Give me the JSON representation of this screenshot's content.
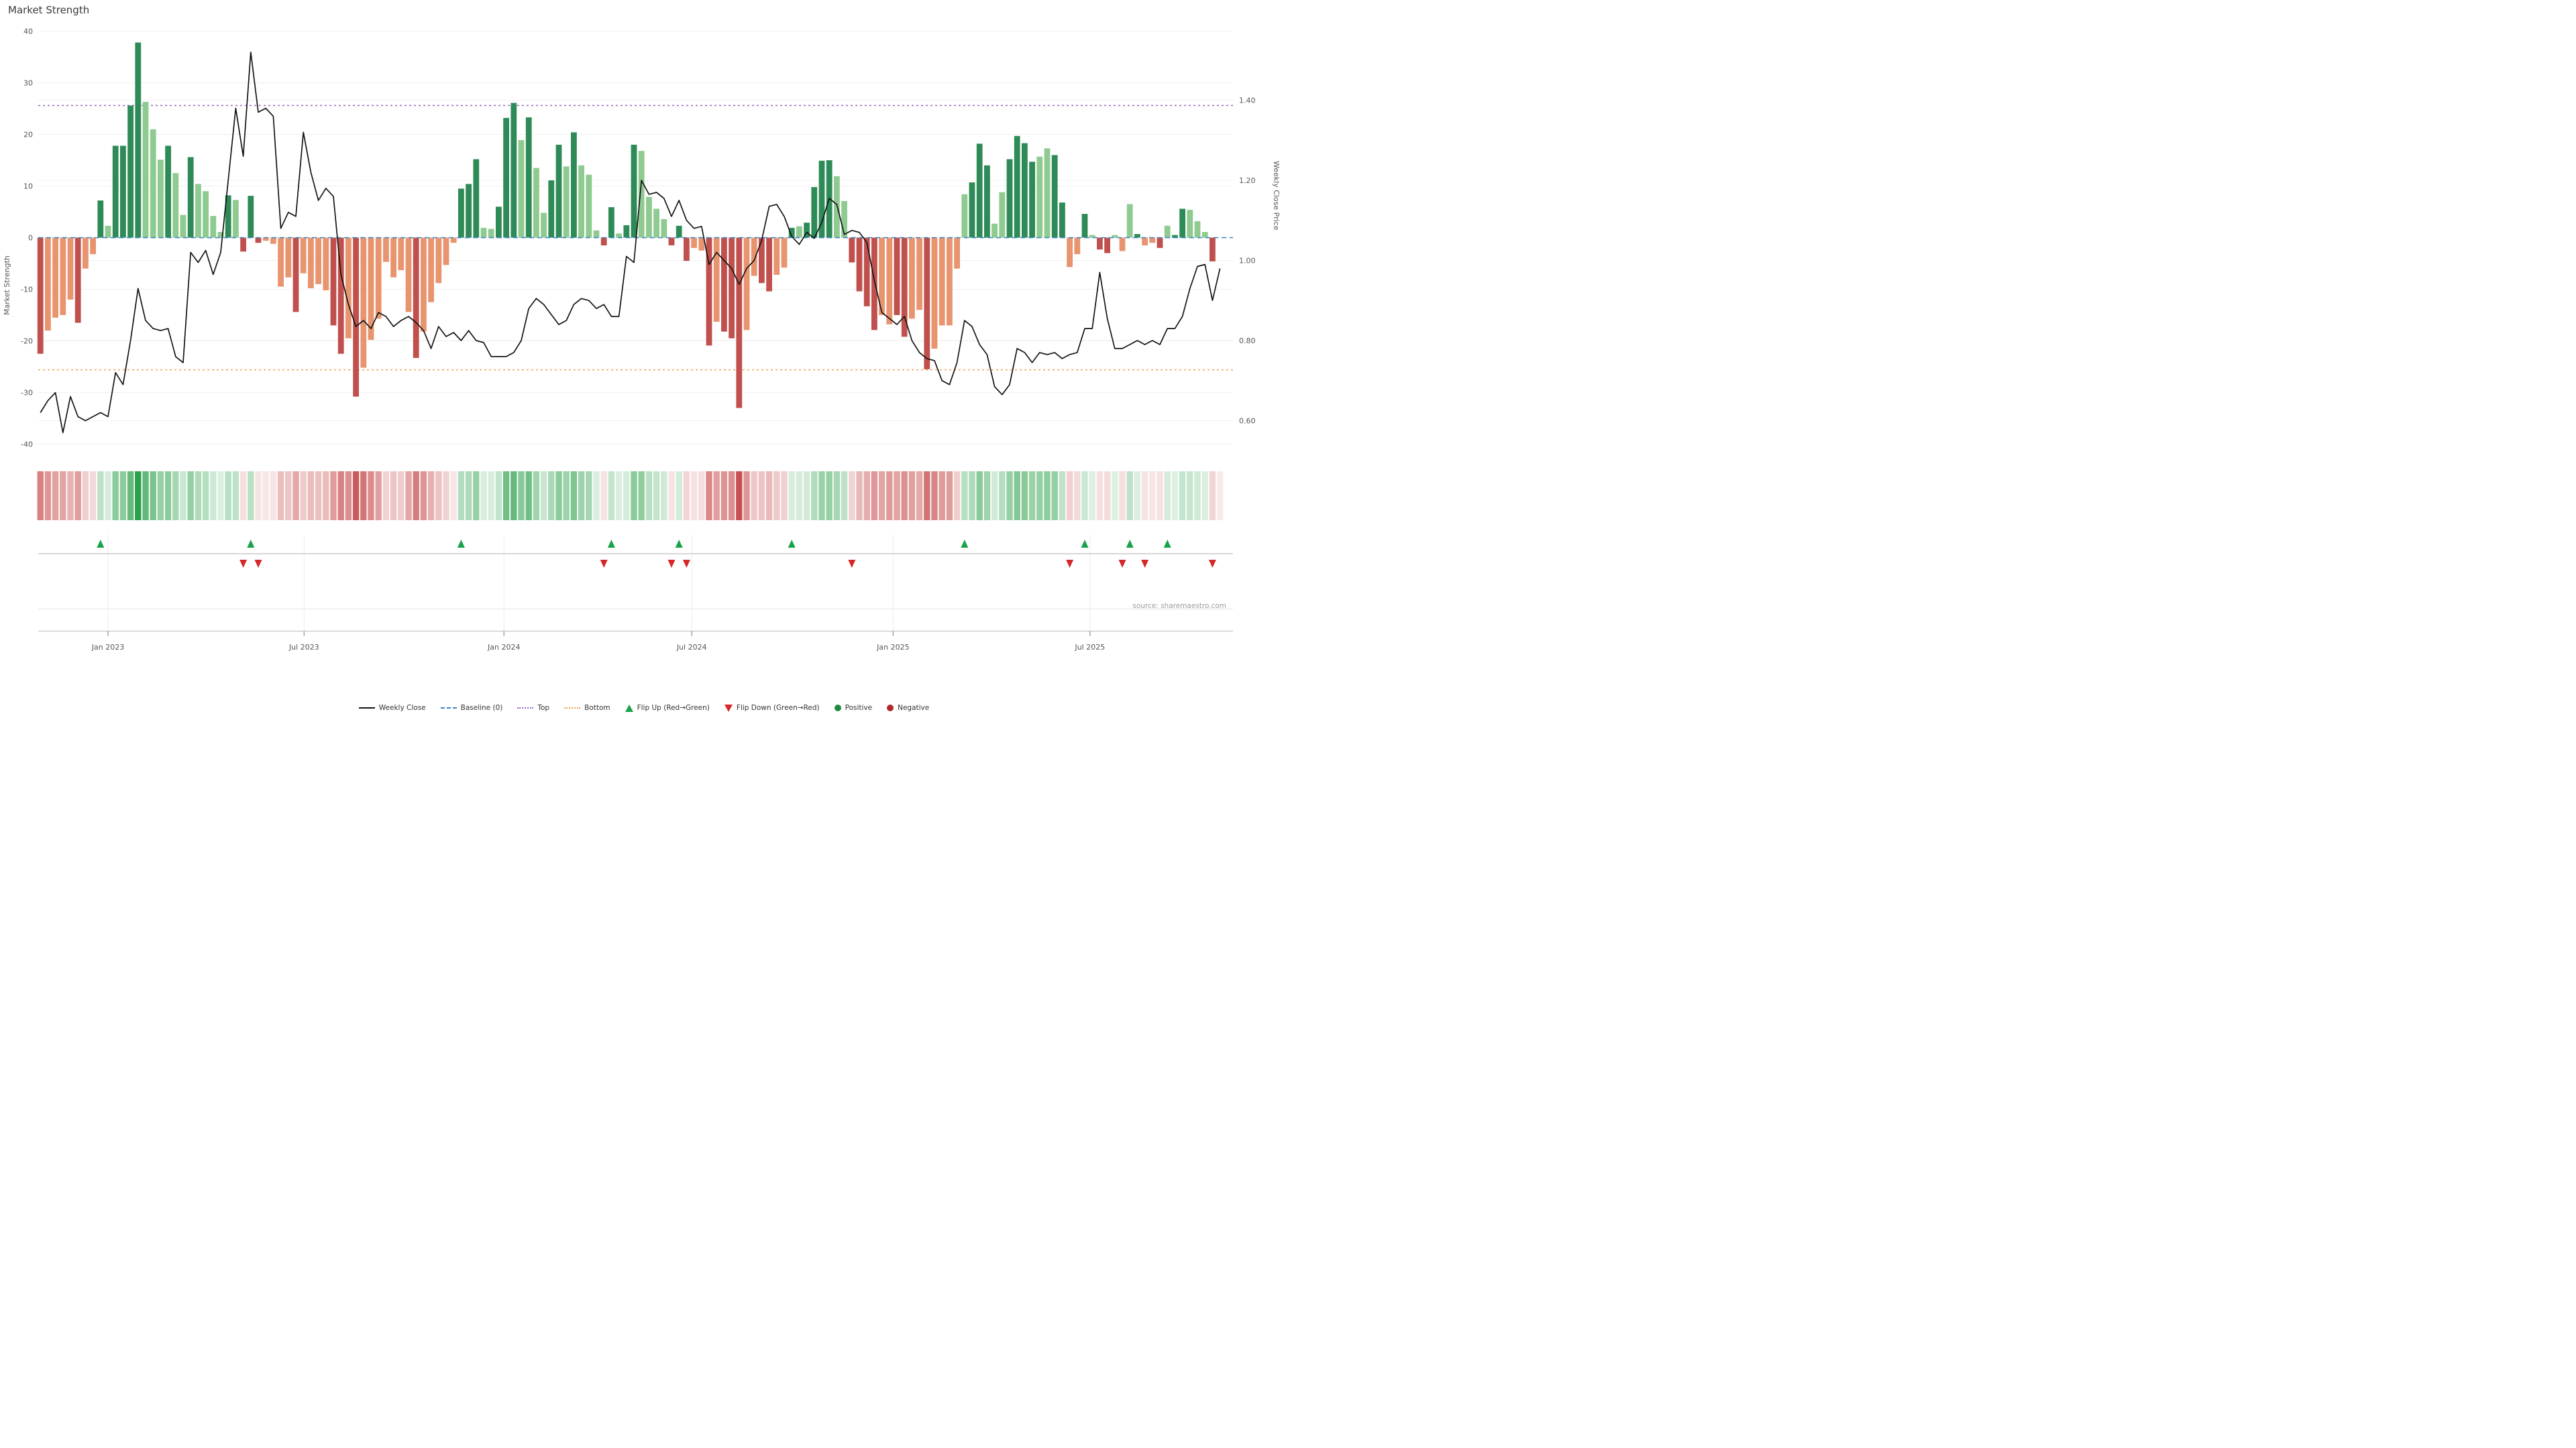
{
  "title": "Market Strength",
  "source": "source: sharemaestro.com",
  "axes": {
    "left_label": "Market Strength",
    "right_label": "Weekly Close Price",
    "left_ticks": [
      40,
      30,
      20,
      10,
      0,
      -10,
      -20,
      -30,
      -40
    ],
    "right_ticks": [
      "1.40",
      "1.20",
      "1.00",
      "0.80",
      "0.60"
    ],
    "x_ticks": [
      {
        "label": "Jan 2023",
        "week": 9.0
      },
      {
        "label": "Jul 2023",
        "week": 35.1
      },
      {
        "label": "Jan 2024",
        "week": 61.7
      },
      {
        "label": "Jul 2024",
        "week": 86.7
      },
      {
        "label": "Jan 2025",
        "week": 113.5
      },
      {
        "label": "Jul 2025",
        "week": 139.7
      }
    ]
  },
  "legend": [
    {
      "label": "Weekly Close",
      "marker": "line",
      "color": "#141414"
    },
    {
      "label": "Baseline (0)",
      "marker": "dash",
      "color": "#3b82c4"
    },
    {
      "label": "Top",
      "marker": "dotted",
      "color": "#9467bd"
    },
    {
      "label": "Bottom",
      "marker": "dotted",
      "color": "#f0a04e"
    },
    {
      "label": "Flip Up (Red→Green)",
      "marker": "tri-up",
      "color": "#17a349"
    },
    {
      "label": "Flip Down (Green→Red)",
      "marker": "tri-down",
      "color": "#d62728"
    },
    {
      "label": "Positive",
      "marker": "circle",
      "color": "#208a3c"
    },
    {
      "label": "Negative",
      "marker": "circle",
      "color": "#b02a2a"
    }
  ],
  "colors": {
    "bar_positive_dark": "#2e8b57",
    "bar_positive_light": "#8fca90",
    "bar_negative_dark": "#c0504d",
    "bar_negative_light": "#e8946f",
    "line": "#141414",
    "baseline": "#3b82c4",
    "top_line": "#9467bd",
    "bottom_line": "#f0a04e",
    "flip_up": "#17a349",
    "flip_down": "#d62728",
    "heat_green_rgb": "44,160,74",
    "heat_red_rgb": "200,80,80",
    "grid": "#f0f0f0",
    "axis_text": "#555"
  },
  "chart_data": {
    "type": "composite",
    "title": "Market Strength",
    "ylabel_left": "Market Strength",
    "ylabel_right": "Weekly Close Price",
    "ylim_strength": [
      -40,
      40
    ],
    "baseline": 0,
    "top_threshold": 25.6,
    "bottom_threshold": -25.6,
    "n_weeks": 158,
    "x_start_label": "late 2022 (weekly data)",
    "series": [
      {
        "name": "Market Strength",
        "type": "bar",
        "values": [
          -22.5,
          -18,
          -15.5,
          -15,
          -12,
          -16.5,
          -6,
          -3.2,
          7.2,
          2.3,
          17.8,
          17.8,
          25.6,
          37.8,
          26.3,
          21,
          15.1,
          17.8,
          12.5,
          4.4,
          15.6,
          10.4,
          9,
          4.2,
          1.1,
          8.2,
          7.3,
          -2.7,
          8.1,
          -1,
          -0.6,
          -1.2,
          -9.5,
          -7.7,
          -14.4,
          -6.9,
          -9.8,
          -9,
          -10.2,
          -17,
          -22.5,
          -19.5,
          -30.8,
          -25.2,
          -19.8,
          -15.7,
          -4.7,
          -7.7,
          -6.3,
          -14.4,
          -23.3,
          -18.2,
          -12.5,
          -8.8,
          -5.3,
          -1,
          9.5,
          10.4,
          15.2,
          1.9,
          1.7,
          6,
          23.2,
          26.1,
          18.9,
          23.3,
          13.5,
          4.8,
          11.1,
          18,
          13.8,
          20.4,
          14,
          12.2,
          1.4,
          -1.5,
          5.9,
          0.8,
          2.4,
          18,
          16.8,
          7.9,
          5.6,
          3.6,
          -1.5,
          2.3,
          -4.5,
          -2,
          -2.5,
          -20.9,
          -16.3,
          -18.2,
          -19.5,
          -33,
          -17.9,
          -7.4,
          -8.8,
          -10.4,
          -7.2,
          -5.8,
          1.9,
          2.2,
          2.9,
          9.8,
          14.9,
          15,
          11.9,
          7.1,
          -4.8,
          -10.4,
          -13.3,
          -17.9,
          -15,
          -16.8,
          -15,
          -19.2,
          -15.7,
          -14,
          -25.5,
          -21.5,
          -17,
          -17,
          -6,
          8.4,
          10.7,
          18.2,
          14,
          2.7,
          8.8,
          15.2,
          19.7,
          18.3,
          14.7,
          15.7,
          17.3,
          16,
          6.8,
          -5.7,
          -3.2,
          4.6,
          0.5,
          -2.3,
          -3,
          0.5,
          -2.6,
          6.5,
          0.7,
          -1.5,
          -1,
          -2,
          2.3,
          0.5,
          5.6,
          5.4,
          3.2,
          1.1,
          -4.6,
          0
        ],
        "shades": "dlllldlldlddddllldlldlllldldddlllldllllddldllllllldllllldddlldddldllddldlllddlddlllldddlldldddllddlldlddddllddddllddlldllllldddllddddllddlldlddllldlldlddllldldldllldl"
      },
      {
        "name": "Weekly Close",
        "type": "line",
        "values": [
          0.62,
          0.65,
          0.67,
          0.57,
          0.66,
          0.61,
          0.6,
          0.61,
          0.62,
          0.61,
          0.72,
          0.69,
          0.8,
          0.93,
          0.85,
          0.83,
          0.825,
          0.83,
          0.76,
          0.745,
          1.02,
          0.995,
          1.025,
          0.965,
          1.02,
          1.2,
          1.38,
          1.26,
          1.52,
          1.37,
          1.38,
          1.36,
          1.08,
          1.12,
          1.11,
          1.32,
          1.22,
          1.15,
          1.18,
          1.16,
          0.965,
          0.89,
          0.835,
          0.85,
          0.83,
          0.87,
          0.86,
          0.835,
          0.85,
          0.86,
          0.845,
          0.825,
          0.78,
          0.835,
          0.81,
          0.82,
          0.8,
          0.825,
          0.8,
          0.795,
          0.76,
          0.76,
          0.76,
          0.77,
          0.8,
          0.88,
          0.905,
          0.89,
          0.865,
          0.84,
          0.85,
          0.89,
          0.905,
          0.9,
          0.88,
          0.89,
          0.86,
          0.86,
          1.01,
          0.995,
          1.2,
          1.165,
          1.17,
          1.155,
          1.11,
          1.15,
          1.1,
          1.08,
          1.085,
          0.99,
          1.02,
          1.0,
          0.98,
          0.94,
          0.98,
          1.0,
          1.05,
          1.135,
          1.14,
          1.11,
          1.06,
          1.04,
          1.07,
          1.055,
          1.095,
          1.155,
          1.14,
          1.065,
          1.075,
          1.07,
          1.045,
          0.95,
          0.87,
          0.855,
          0.84,
          0.86,
          0.8,
          0.77,
          0.755,
          0.75,
          0.7,
          0.69,
          0.745,
          0.85,
          0.835,
          0.79,
          0.765,
          0.685,
          0.665,
          0.69,
          0.78,
          0.77,
          0.745,
          0.77,
          0.765,
          0.77,
          0.755,
          0.765,
          0.77,
          0.83,
          0.83,
          0.97,
          0.855,
          0.78,
          0.78,
          0.79,
          0.8,
          0.79,
          0.8,
          0.79,
          0.83,
          0.83,
          0.86,
          0.93,
          0.985,
          0.99,
          0.9,
          0.98
        ]
      }
    ],
    "flip_up_weeks": [
      8,
      28,
      56,
      76,
      85,
      100,
      123,
      139,
      145,
      150
    ],
    "flip_down_weeks": [
      27,
      29,
      75,
      84,
      86,
      108,
      137,
      144,
      147,
      156
    ],
    "heatmap": "strip of one cell per week; color = sign of Market Strength bar (green positive / red negative), opacity scaled by magnitude"
  }
}
